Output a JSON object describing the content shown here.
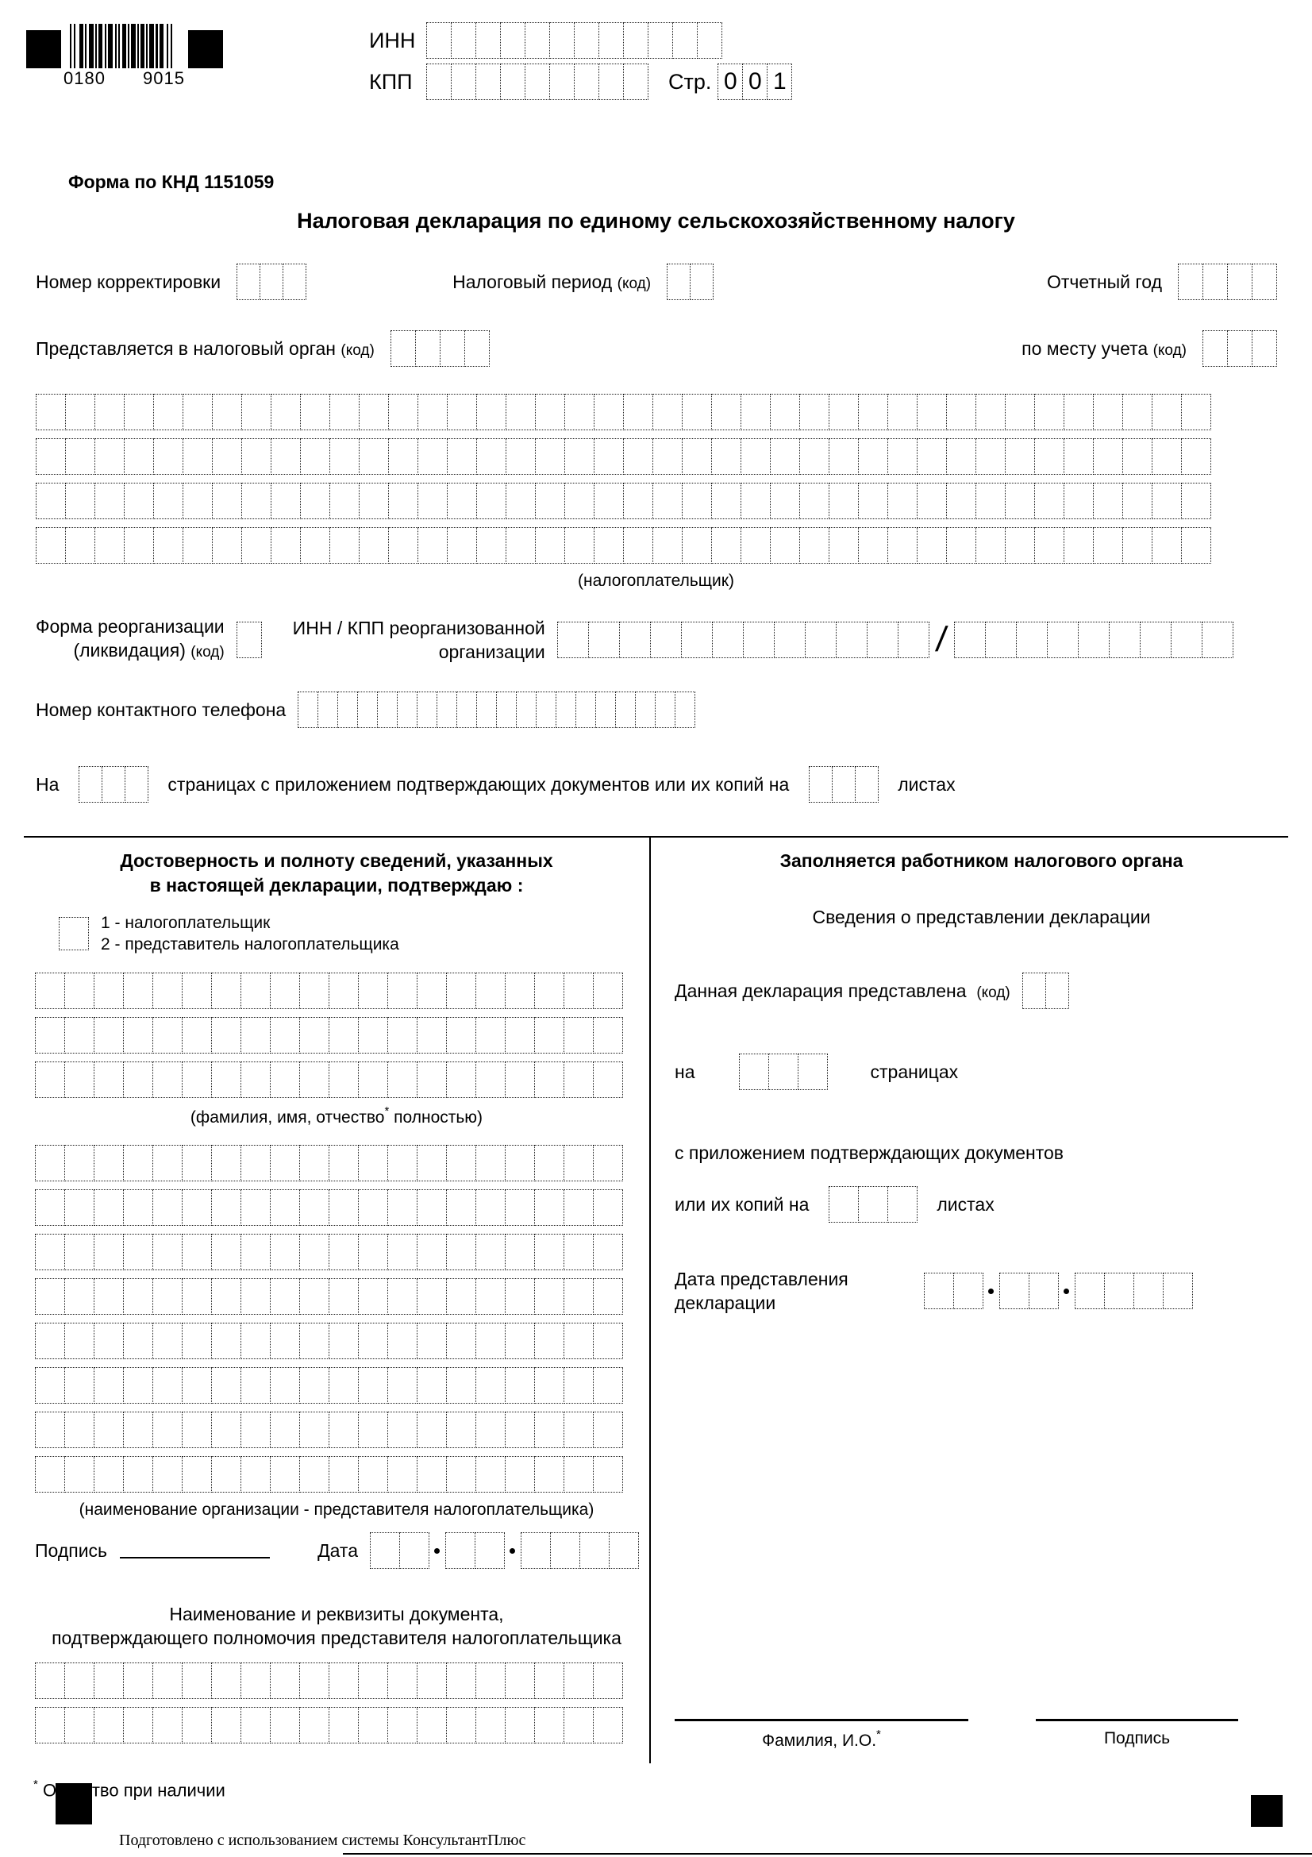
{
  "header": {
    "barcode_left": "0180",
    "barcode_right": "9015",
    "inn_label": "ИНН",
    "kpp_label": "КПП",
    "page_label": "Стр.",
    "page_digits": [
      "0",
      "0",
      "1"
    ]
  },
  "form": {
    "knd_label": "Форма по КНД 1151059",
    "title": "Налоговая декларация по единому сельскохозяйственному налогу"
  },
  "fields": {
    "correction_label": "Номер корректировки",
    "tax_period_label": "Налоговый период",
    "code_suffix": "(код)",
    "report_year_label": "Отчетный год",
    "tax_authority_label": "Представляется в налоговый орган",
    "place_label": "по месту учета",
    "taxpayer_caption": "(налогоплательщик)",
    "reorg_label_line1": "Форма реорганизации",
    "reorg_label_line2": "(ликвидация)",
    "reorg_inn_label_line1": "ИНН / КПП реорганизованной",
    "reorg_inn_label_line2": "организации",
    "slash": "/",
    "phone_label": "Номер контактного телефона",
    "pages_prefix": "На",
    "pages_text": "страницах с приложением подтверждающих документов или их копий на",
    "pages_suffix": "листах"
  },
  "left_section": {
    "title_line1": "Достоверность и полноту сведений, указанных",
    "title_line2": "в настоящей декларации, подтверждаю :",
    "option1": "1 - налогоплательщик",
    "option2": "2 - представитель налогоплательщика",
    "fio_caption_pre": "(фамилия, имя, отчество",
    "fio_caption_star": "*",
    "fio_caption_post": " полностью)",
    "org_caption": "(наименование организации - представителя налогоплательщика)",
    "signature_label": "Подпись",
    "date_label": "Дата",
    "doc_title_line1": "Наименование и реквизиты документа,",
    "doc_title_line2": "подтверждающего полномочия представителя налогоплательщика"
  },
  "right_section": {
    "title": "Заполняется работником налогового органа",
    "subtitle": "Сведения о представлении декларации",
    "declared_label": "Данная декларация представлена",
    "on_label": "на",
    "pages_label": "страницах",
    "attachments_label": "с приложением подтверждающих документов",
    "copies_label": "или их копий на",
    "sheets_label": "листах",
    "date_label_line1": "Дата представления",
    "date_label_line2": "декларации",
    "surname_label": "Фамилия, И.О.",
    "surname_star": "*",
    "signature_label": "Подпись"
  },
  "footer": {
    "footnote_star": "*",
    "footnote_text": "Отчество при наличии",
    "consultant_text": "Подготовлено с использованием системы КонсультантПлюс"
  }
}
